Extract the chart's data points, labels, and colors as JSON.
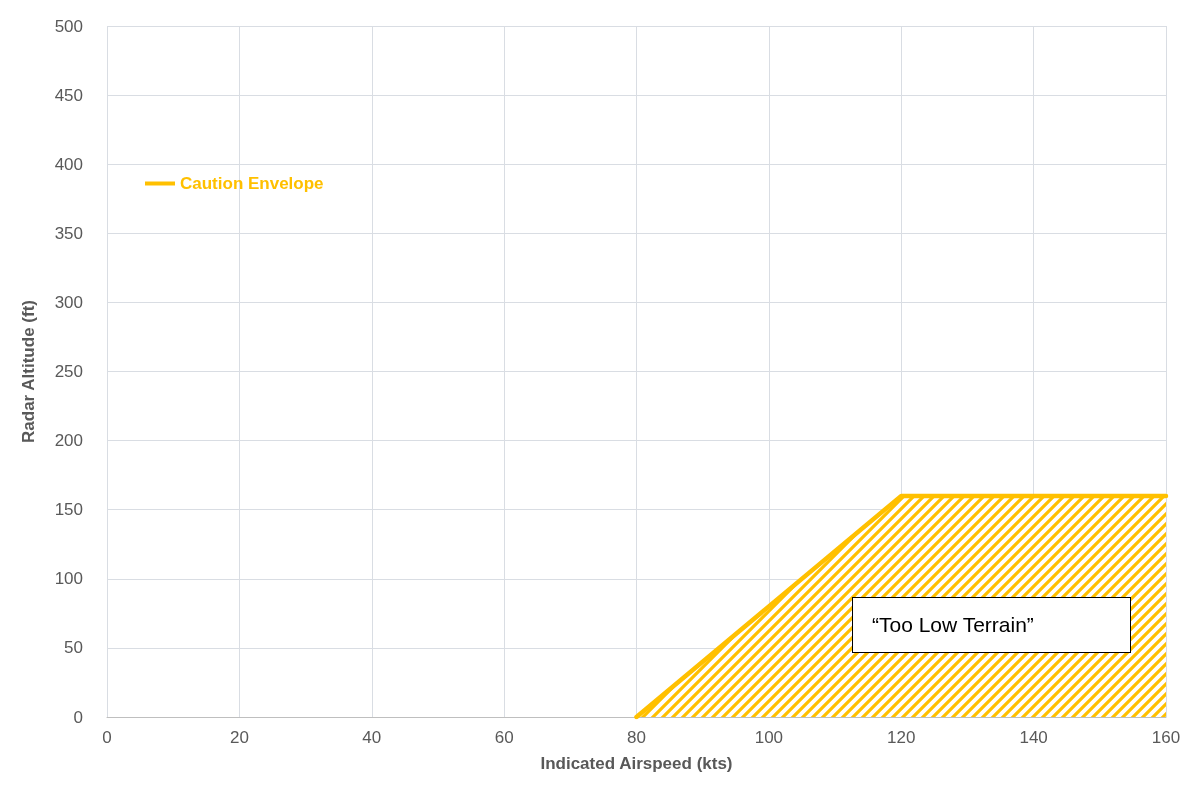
{
  "chart_data": {
    "type": "area",
    "xlabel": "Indicated Airspeed (kts)",
    "ylabel": "Radar Altitude (ft)",
    "series": [
      {
        "name": "Caution Envelope",
        "color": "#ffc000",
        "x": [
          80,
          120,
          160
        ],
        "values": [
          0,
          160,
          160
        ]
      }
    ],
    "xlim": [
      0,
      160
    ],
    "xticks": [
      0,
      20,
      40,
      60,
      80,
      100,
      120,
      140,
      160
    ],
    "ylim": [
      0,
      500
    ],
    "yticks": [
      0,
      50,
      100,
      150,
      200,
      250,
      300,
      350,
      400,
      450,
      500
    ],
    "grid": true,
    "legend": "top left",
    "marker": "none",
    "line_style": "solid",
    "annotations": [
      "“Too Low Terrain”"
    ]
  }
}
